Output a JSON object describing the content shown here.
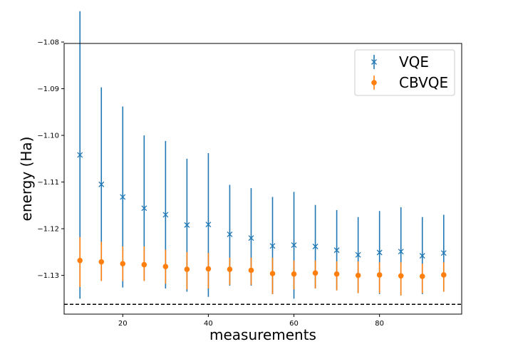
{
  "chart_data": {
    "type": "scatter",
    "title": "",
    "xlabel": "measurements",
    "ylabel": "energy (Ha)",
    "xlim": [
      6.3,
      99.2
    ],
    "ylim": [
      -1.1383,
      -1.0803
    ],
    "x_ticks": [
      20,
      40,
      60,
      80
    ],
    "x_tick_labels": [
      "20",
      "40",
      "60",
      "80"
    ],
    "y_ticks": [
      -1.08,
      -1.09,
      -1.1,
      -1.11,
      -1.12,
      -1.13
    ],
    "y_tick_labels": [
      "−1.08",
      "−1.09",
      "−1.10",
      "−1.11",
      "−1.12",
      "−1.13"
    ],
    "legend_position": "top-right",
    "reference_line": {
      "y": -1.1362,
      "style": "dashed",
      "color": "#000000"
    },
    "x": [
      10,
      15,
      20,
      25,
      30,
      35,
      40,
      45,
      50,
      55,
      60,
      65,
      70,
      75,
      80,
      85,
      90,
      95
    ],
    "series": [
      {
        "name": "VQE",
        "marker": "x",
        "color": "#1f77b4",
        "values": [
          -1.1042,
          -1.1105,
          -1.1132,
          -1.1156,
          -1.117,
          -1.1192,
          -1.1191,
          -1.1212,
          -1.122,
          -1.1237,
          -1.1235,
          -1.1238,
          -1.1246,
          -1.1256,
          -1.1251,
          -1.1249,
          -1.1258,
          -1.1252
        ],
        "err_low": [
          -1.135,
          -1.1312,
          -1.1326,
          -1.1312,
          -1.1328,
          -1.1335,
          -1.1346,
          -1.1322,
          -1.1322,
          -1.134,
          -1.135,
          -1.1328,
          -1.1332,
          -1.1338,
          -1.134,
          -1.1343,
          -1.134,
          -1.1335
        ],
        "err_high": [
          -1.0734,
          -1.0897,
          -1.0938,
          -1.1,
          -1.1012,
          -1.105,
          -1.1038,
          -1.1106,
          -1.1113,
          -1.1132,
          -1.1121,
          -1.1149,
          -1.116,
          -1.1175,
          -1.1162,
          -1.1154,
          -1.1175,
          -1.117
        ]
      },
      {
        "name": "CBVQE",
        "marker": "o",
        "color": "#ff7f0e",
        "values": [
          -1.1268,
          -1.1271,
          -1.1275,
          -1.1277,
          -1.1281,
          -1.1287,
          -1.1286,
          -1.1287,
          -1.1289,
          -1.1296,
          -1.1297,
          -1.1295,
          -1.1297,
          -1.13,
          -1.1299,
          -1.1301,
          -1.1302,
          -1.1299
        ],
        "err_low": [
          -1.1325,
          -1.1312,
          -1.1312,
          -1.1312,
          -1.1318,
          -1.133,
          -1.1328,
          -1.132,
          -1.132,
          -1.134,
          -1.133,
          -1.1328,
          -1.1332,
          -1.1338,
          -1.1338,
          -1.1343,
          -1.1338,
          -1.1335
        ],
        "err_high": [
          -1.1218,
          -1.1228,
          -1.1238,
          -1.1238,
          -1.1245,
          -1.125,
          -1.1252,
          -1.1262,
          -1.1262,
          -1.1262,
          -1.1268,
          -1.1268,
          -1.127,
          -1.127,
          -1.1272,
          -1.1272,
          -1.1275,
          -1.1272
        ]
      }
    ]
  }
}
